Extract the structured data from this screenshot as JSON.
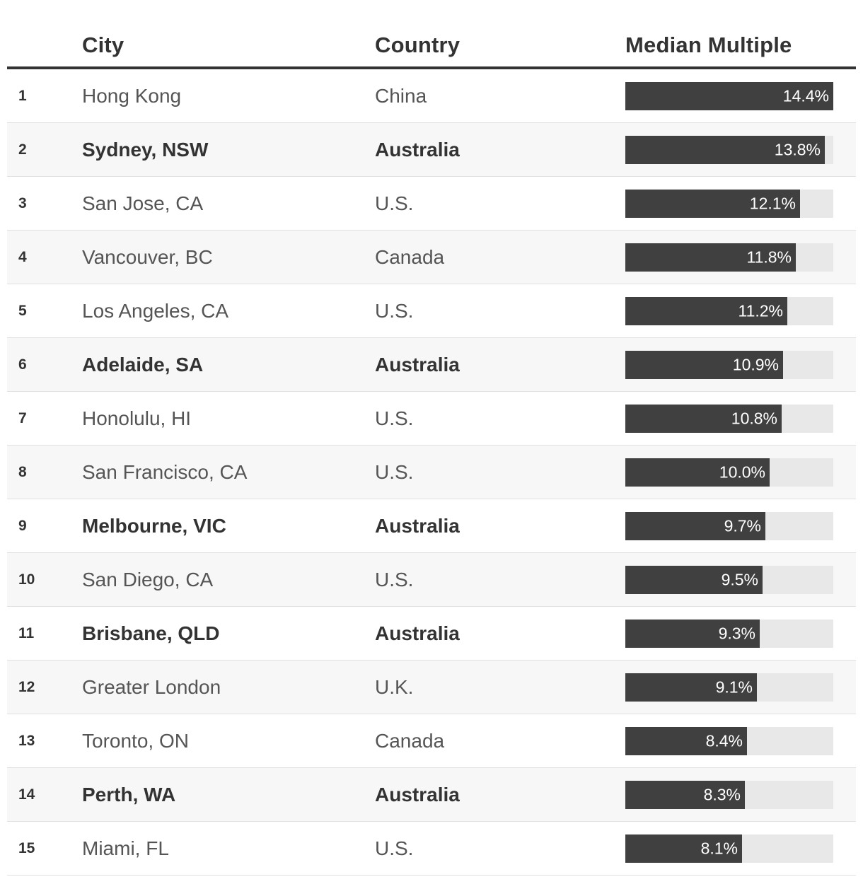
{
  "table": {
    "headers": {
      "rank": "",
      "city": "City",
      "country": "Country",
      "value": "Median Multiple"
    }
  },
  "colors": {
    "bar": "#404040",
    "track": "#e8e8e8",
    "header_rule": "#333333"
  },
  "chart_data": {
    "type": "table",
    "value_max": 14.4,
    "rows": [
      {
        "rank": "1",
        "city": "Hong Kong",
        "country": "China",
        "value": 14.4,
        "label": "14.4%",
        "highlight": false
      },
      {
        "rank": "2",
        "city": "Sydney, NSW",
        "country": "Australia",
        "value": 13.8,
        "label": "13.8%",
        "highlight": true
      },
      {
        "rank": "3",
        "city": "San Jose, CA",
        "country": "U.S.",
        "value": 12.1,
        "label": "12.1%",
        "highlight": false
      },
      {
        "rank": "4",
        "city": "Vancouver, BC",
        "country": "Canada",
        "value": 11.8,
        "label": "11.8%",
        "highlight": false
      },
      {
        "rank": "5",
        "city": "Los Angeles, CA",
        "country": "U.S.",
        "value": 11.2,
        "label": "11.2%",
        "highlight": false
      },
      {
        "rank": "6",
        "city": "Adelaide, SA",
        "country": "Australia",
        "value": 10.9,
        "label": "10.9%",
        "highlight": true
      },
      {
        "rank": "7",
        "city": "Honolulu, HI",
        "country": "U.S.",
        "value": 10.8,
        "label": "10.8%",
        "highlight": false
      },
      {
        "rank": "8",
        "city": "San Francisco, CA",
        "country": "U.S.",
        "value": 10.0,
        "label": "10.0%",
        "highlight": false
      },
      {
        "rank": "9",
        "city": "Melbourne, VIC",
        "country": "Australia",
        "value": 9.7,
        "label": "9.7%",
        "highlight": true
      },
      {
        "rank": "10",
        "city": "San Diego, CA",
        "country": "U.S.",
        "value": 9.5,
        "label": "9.5%",
        "highlight": false
      },
      {
        "rank": "11",
        "city": "Brisbane, QLD",
        "country": "Australia",
        "value": 9.3,
        "label": "9.3%",
        "highlight": true
      },
      {
        "rank": "12",
        "city": "Greater London",
        "country": "U.K.",
        "value": 9.1,
        "label": "9.1%",
        "highlight": false
      },
      {
        "rank": "13",
        "city": "Toronto, ON",
        "country": "Canada",
        "value": 8.4,
        "label": "8.4%",
        "highlight": false
      },
      {
        "rank": "14",
        "city": "Perth, WA",
        "country": "Australia",
        "value": 8.3,
        "label": "8.3%",
        "highlight": true
      },
      {
        "rank": "15",
        "city": "Miami, FL",
        "country": "U.S.",
        "value": 8.1,
        "label": "8.1%",
        "highlight": false
      }
    ]
  }
}
